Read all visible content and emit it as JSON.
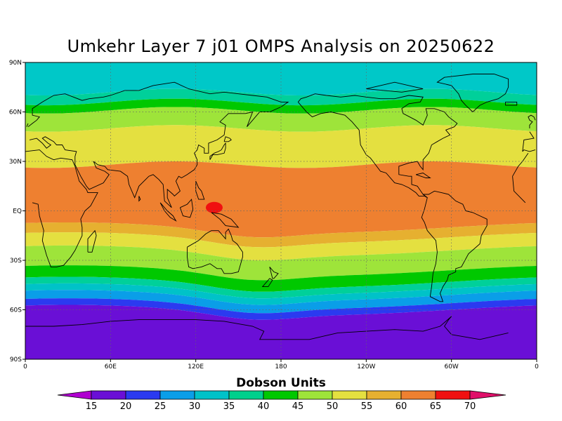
{
  "title": "Umkehr Layer 7 j01 OMPS Analysis on 20250622",
  "lat_labels": [
    "90N",
    "60N",
    "30N",
    "EQ",
    "30S",
    "60S",
    "90S"
  ],
  "lon_labels": [
    "0",
    "60E",
    "120E",
    "180",
    "120W",
    "60W",
    "0"
  ],
  "colorbar": {
    "title": "Dobson Units",
    "labels": [
      "15",
      "20",
      "25",
      "30",
      "35",
      "40",
      "45",
      "50",
      "55",
      "60",
      "65",
      "70"
    ],
    "colors": [
      "#b000d0",
      "#6a0fd6",
      "#2b3af0",
      "#0a9ee8",
      "#00c2c8",
      "#00d08c",
      "#00c800",
      "#9ee43a",
      "#e4e040",
      "#e6b030",
      "#ee8030",
      "#f01010",
      "#e0106a"
    ]
  },
  "bands": [
    {
      "lat": 90,
      "color": "#00c8c8"
    },
    {
      "lat": 72,
      "color": "#00d09a"
    },
    {
      "lat": 66,
      "color": "#00c800"
    },
    {
      "lat": 61,
      "color": "#9ee43a"
    },
    {
      "lat": 50,
      "color": "#e4e040"
    },
    {
      "lat": 28,
      "color": "#ee8030"
    },
    {
      "lat": -10,
      "color": "#e6b030"
    },
    {
      "lat": -16,
      "color": "#e4e040"
    },
    {
      "lat": -24,
      "color": "#9ee43a"
    },
    {
      "lat": -36,
      "color": "#00c800"
    },
    {
      "lat": -43,
      "color": "#00d09a"
    },
    {
      "lat": -47,
      "color": "#00c2c8"
    },
    {
      "lat": -51,
      "color": "#0a9ee8"
    },
    {
      "lat": -56,
      "color": "#2b3af0"
    },
    {
      "lat": -60,
      "color": "#6a0fd6"
    }
  ],
  "hotspot": {
    "lon": 133,
    "lat": 2,
    "color": "#f01010"
  }
}
